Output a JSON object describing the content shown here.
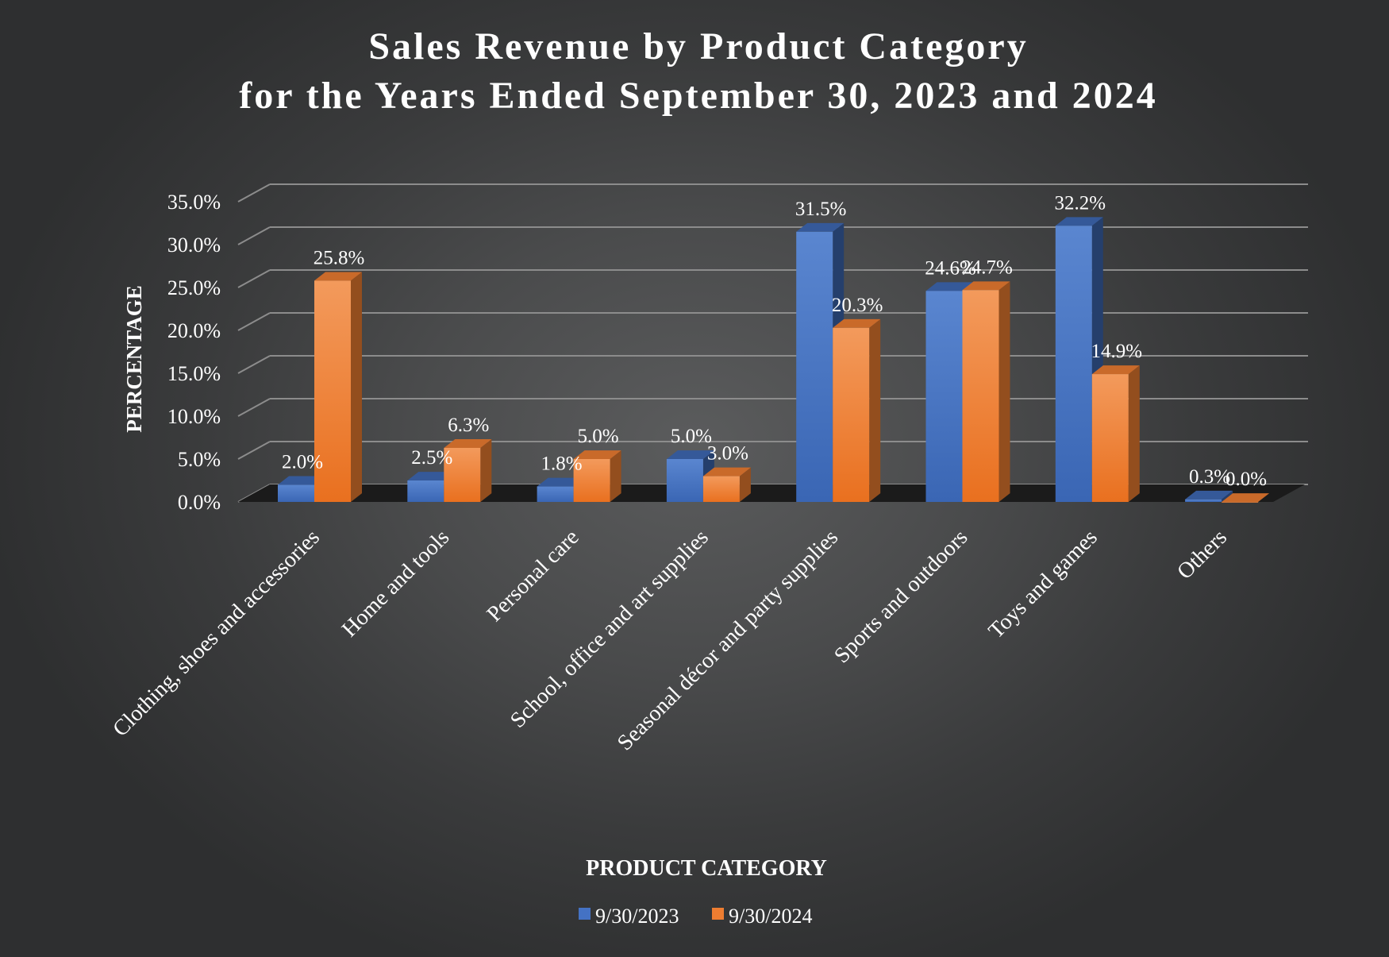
{
  "chart_data": {
    "type": "bar",
    "title_lines": [
      "Sales Revenue by Product Category",
      "for the Years Ended September 30, 2023 and  2024"
    ],
    "xlabel": "PRODUCT CATEGORY",
    "ylabel": "PERCENTAGE",
    "ylim": [
      0,
      35
    ],
    "yticks": [
      "0.0%",
      "5.0%",
      "10.0%",
      "15.0%",
      "20.0%",
      "25.0%",
      "30.0%",
      "35.0%"
    ],
    "grid": true,
    "legend_position": "bottom",
    "categories": [
      "Clothing, shoes and accessories",
      "Home and tools",
      "Personal care",
      "School, office and art supplies",
      "Seasonal décor and party supplies",
      "Sports and outdoors",
      "Toys and games",
      "Others"
    ],
    "series": [
      {
        "name": "9/30/2023",
        "color": "#4472c4",
        "values": [
          2.0,
          2.5,
          1.8,
          5.0,
          31.5,
          24.6,
          32.2,
          0.3
        ],
        "labels": [
          "2.0%",
          "2.5%",
          "1.8%",
          "5.0%",
          "31.5%",
          "24.6%",
          "32.2%",
          "0.3%"
        ]
      },
      {
        "name": "9/30/2024",
        "color": "#ed7d31",
        "values": [
          25.8,
          6.3,
          5.0,
          3.0,
          20.3,
          24.7,
          14.9,
          0.0
        ],
        "labels": [
          "25.8%",
          "6.3%",
          "5.0%",
          "3.0%",
          "20.3%",
          "24.7%",
          "14.9%",
          "0.0%"
        ]
      }
    ]
  }
}
